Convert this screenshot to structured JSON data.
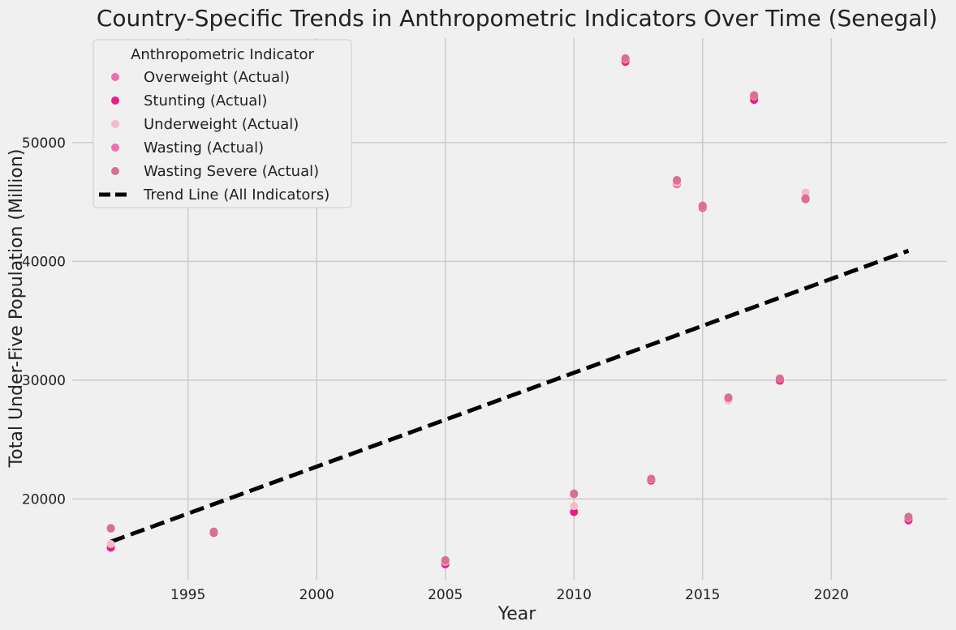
{
  "chart_data": {
    "type": "scatter",
    "title": "Country-Specific Trends in Anthropometric Indicators Over Time (Senegal)",
    "xlabel": "Year",
    "ylabel": "Total Under-Five Population (Million)",
    "xlim": [
      1990.5,
      2024.5
    ],
    "ylim": [
      13200,
      58800
    ],
    "xticks": [
      1995,
      2000,
      2005,
      2010,
      2015,
      2020
    ],
    "yticks": [
      20000,
      30000,
      40000,
      50000
    ],
    "grid": true,
    "legend": {
      "title": "Anthropometric Indicator",
      "placement": "top-left"
    },
    "series": [
      {
        "name": "Overweight (Actual)",
        "color": "#f06eaa",
        "points": [
          [
            1992,
            16000
          ],
          [
            1996,
            17200
          ],
          [
            2005,
            14600
          ],
          [
            2010,
            20400
          ],
          [
            2012,
            56900
          ],
          [
            2013,
            21600
          ],
          [
            2014,
            46500
          ],
          [
            2015,
            44500
          ],
          [
            2016,
            28400
          ],
          [
            2017,
            53800
          ],
          [
            2018,
            30000
          ],
          [
            2019,
            45300
          ],
          [
            2023,
            18300
          ]
        ]
      },
      {
        "name": "Stunting (Actual)",
        "color": "#f0168c",
        "points": [
          [
            1992,
            15900
          ],
          [
            1996,
            17150
          ],
          [
            2005,
            14500
          ],
          [
            2010,
            18900
          ],
          [
            2012,
            56800
          ],
          [
            2013,
            21550
          ],
          [
            2014,
            46550
          ],
          [
            2015,
            44550
          ],
          [
            2016,
            28450
          ],
          [
            2017,
            53600
          ],
          [
            2018,
            29950
          ],
          [
            2019,
            45250
          ],
          [
            2023,
            18200
          ]
        ]
      },
      {
        "name": "Underweight (Actual)",
        "color": "#f9b9c6",
        "points": [
          [
            1992,
            16200
          ],
          [
            1996,
            17250
          ],
          [
            2005,
            14700
          ],
          [
            2010,
            19400
          ],
          [
            2012,
            57000
          ],
          [
            2013,
            21650
          ],
          [
            2014,
            46600
          ],
          [
            2015,
            44600
          ],
          [
            2016,
            28300
          ],
          [
            2017,
            53900
          ],
          [
            2018,
            30100
          ],
          [
            2019,
            45800
          ],
          [
            2023,
            18400
          ]
        ]
      },
      {
        "name": "Wasting (Actual)",
        "color": "#f06eaa",
        "points": [
          [
            1992,
            17500
          ],
          [
            1996,
            17200
          ],
          [
            2005,
            14800
          ],
          [
            2010,
            20450
          ],
          [
            2012,
            57050
          ],
          [
            2013,
            21700
          ],
          [
            2014,
            46800
          ],
          [
            2015,
            44700
          ],
          [
            2016,
            28500
          ],
          [
            2017,
            54000
          ],
          [
            2018,
            30150
          ],
          [
            2019,
            45300
          ],
          [
            2023,
            18450
          ]
        ]
      },
      {
        "name": "Wasting Severe (Actual)",
        "color": "#d9708f",
        "points": [
          [
            1992,
            17550
          ],
          [
            1996,
            17250
          ],
          [
            2005,
            14850
          ],
          [
            2010,
            20450
          ],
          [
            2012,
            57100
          ],
          [
            2013,
            21700
          ],
          [
            2014,
            46850
          ],
          [
            2015,
            44650
          ],
          [
            2016,
            28550
          ],
          [
            2017,
            53950
          ],
          [
            2018,
            30100
          ],
          [
            2019,
            45300
          ],
          [
            2023,
            18500
          ]
        ]
      }
    ],
    "trend_line": {
      "name": "Trend Line (All Indicators)",
      "color": "#000000",
      "points": [
        [
          1992,
          16400
        ],
        [
          2023,
          40900
        ]
      ]
    }
  }
}
